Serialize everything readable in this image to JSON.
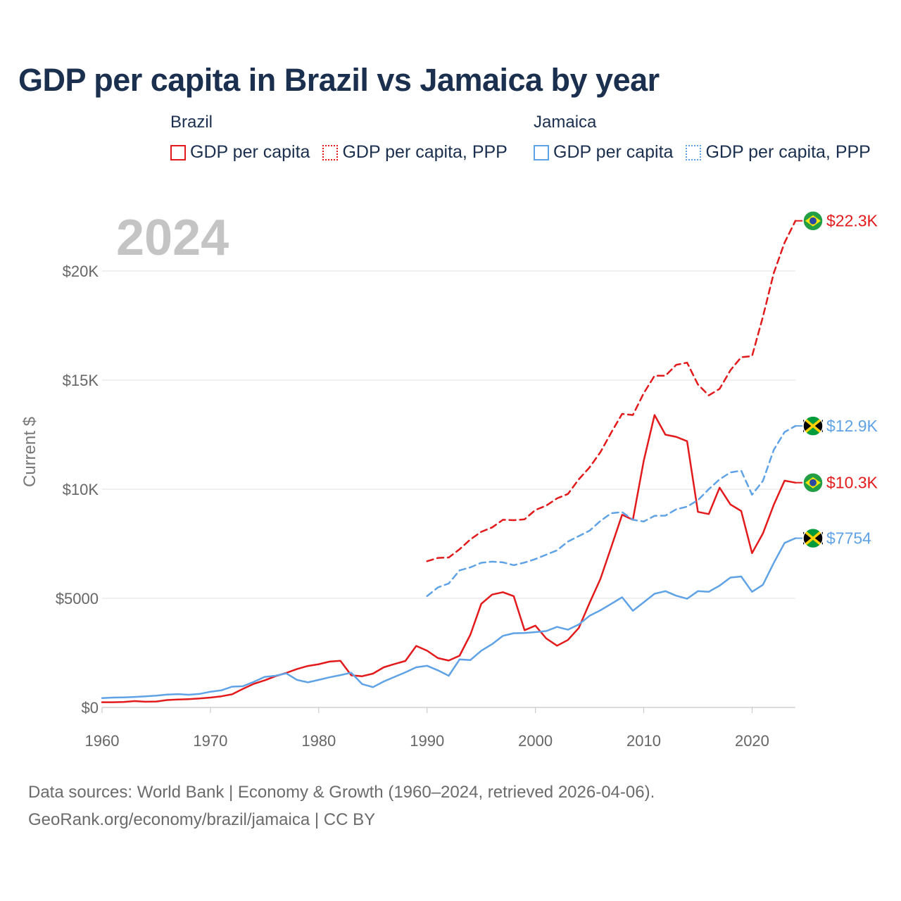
{
  "title": "GDP per capita in Brazil vs Jamaica by year",
  "legend": {
    "brazil": {
      "heading": "Brazil",
      "gdp": "GDP per capita",
      "ppp": "GDP per capita, PPP",
      "color": "#e31a1c"
    },
    "jamaica": {
      "heading": "Jamaica",
      "gdp": "GDP per capita",
      "ppp": "GDP per capita, PPP",
      "color": "#5fa3e6"
    }
  },
  "year_label": "2024",
  "footer": {
    "line1": "Data sources: World Bank | Economy & Growth (1960–2024, retrieved 2026-04-06).",
    "line2": "GeoRank.org/economy/brazil/jamaica | CC BY"
  },
  "chart_data": {
    "type": "line",
    "title": "GDP per capita in Brazil vs Jamaica by year",
    "xlabel": "",
    "ylabel": "Current $",
    "xlim": [
      1960,
      2024
    ],
    "ylim": [
      0,
      20000
    ],
    "x_ticks": [
      1960,
      1970,
      1980,
      1990,
      2000,
      2010,
      2020
    ],
    "x_tick_labels": [
      "1960",
      "1970",
      "1980",
      "1990",
      "2000",
      "2010",
      "2020"
    ],
    "y_ticks": [
      0,
      5000,
      10000,
      15000,
      20000
    ],
    "y_tick_labels": [
      "$0",
      "$5000",
      "$10K",
      "$15K",
      "$20K"
    ],
    "grid": true,
    "series": [
      {
        "name": "Brazil GDP per capita",
        "style": "solid",
        "color": "#e31a1c",
        "end_label": "$10.3K",
        "flag": "brazil",
        "x": [
          1960,
          1961,
          1962,
          1963,
          1964,
          1965,
          1966,
          1967,
          1968,
          1969,
          1970,
          1971,
          1972,
          1973,
          1974,
          1975,
          1976,
          1977,
          1978,
          1979,
          1980,
          1981,
          1982,
          1983,
          1984,
          1985,
          1986,
          1987,
          1988,
          1989,
          1990,
          1991,
          1992,
          1993,
          1994,
          1995,
          1996,
          1997,
          1998,
          1999,
          2000,
          2001,
          2002,
          2003,
          2004,
          2005,
          2006,
          2007,
          2008,
          2009,
          2010,
          2011,
          2012,
          2013,
          2014,
          2015,
          2016,
          2017,
          2018,
          2019,
          2020,
          2021,
          2022,
          2023,
          2024
        ],
        "values": [
          240,
          240,
          250,
          290,
          260,
          270,
          340,
          360,
          380,
          410,
          450,
          510,
          600,
          850,
          1080,
          1240,
          1430,
          1580,
          1760,
          1900,
          1980,
          2100,
          2140,
          1470,
          1430,
          1550,
          1840,
          1990,
          2130,
          2820,
          2600,
          2260,
          2150,
          2370,
          3340,
          4750,
          5170,
          5280,
          5100,
          3540,
          3750,
          3160,
          2830,
          3090,
          3640,
          4790,
          5890,
          7350,
          8830,
          8600,
          11300,
          13400,
          12500,
          12400,
          12200,
          8960,
          8860,
          10070,
          9300,
          9000,
          7070,
          7970,
          9280,
          10390,
          10300
        ]
      },
      {
        "name": "Brazil GDP per capita, PPP",
        "style": "dashed",
        "color": "#e31a1c",
        "end_label": "$22.3K",
        "flag": "brazil",
        "x": [
          1990,
          1991,
          1992,
          1993,
          1994,
          1995,
          1996,
          1997,
          1998,
          1999,
          2000,
          2001,
          2002,
          2003,
          2004,
          2005,
          2006,
          2007,
          2008,
          2009,
          2010,
          2011,
          2012,
          2013,
          2014,
          2015,
          2016,
          2017,
          2018,
          2019,
          2020,
          2021,
          2022,
          2023,
          2024
        ],
        "values": [
          6700,
          6850,
          6870,
          7250,
          7700,
          8050,
          8250,
          8600,
          8580,
          8620,
          9050,
          9250,
          9580,
          9780,
          10450,
          11000,
          11700,
          12600,
          13450,
          13400,
          14400,
          15200,
          15200,
          15700,
          15800,
          14800,
          14300,
          14600,
          15450,
          16050,
          16100,
          17900,
          19900,
          21300,
          22300
        ]
      },
      {
        "name": "Jamaica GDP per capita",
        "style": "solid",
        "color": "#5fa3e6",
        "end_label": "$7754",
        "flag": "jamaica",
        "x": [
          1960,
          1961,
          1962,
          1963,
          1964,
          1965,
          1966,
          1967,
          1968,
          1969,
          1970,
          1971,
          1972,
          1973,
          1974,
          1975,
          1976,
          1977,
          1978,
          1979,
          1980,
          1981,
          1982,
          1983,
          1984,
          1985,
          1986,
          1987,
          1988,
          1989,
          1990,
          1991,
          1992,
          1993,
          1994,
          1995,
          1996,
          1997,
          1998,
          1999,
          2000,
          2001,
          2002,
          2003,
          2004,
          2005,
          2006,
          2007,
          2008,
          2009,
          2010,
          2011,
          2012,
          2013,
          2014,
          2015,
          2016,
          2017,
          2018,
          2019,
          2020,
          2021,
          2022,
          2023,
          2024
        ],
        "values": [
          430,
          450,
          460,
          480,
          510,
          540,
          590,
          610,
          580,
          620,
          720,
          780,
          950,
          970,
          1170,
          1400,
          1450,
          1560,
          1260,
          1150,
          1260,
          1380,
          1480,
          1590,
          1070,
          930,
          1190,
          1400,
          1610,
          1840,
          1910,
          1700,
          1450,
          2200,
          2170,
          2600,
          2900,
          3280,
          3400,
          3410,
          3450,
          3500,
          3690,
          3560,
          3800,
          4200,
          4450,
          4750,
          5050,
          4430,
          4820,
          5210,
          5330,
          5120,
          4980,
          5330,
          5300,
          5580,
          5950,
          6000,
          5300,
          5620,
          6620,
          7540,
          7754
        ]
      },
      {
        "name": "Jamaica GDP per capita, PPP",
        "style": "dashed",
        "color": "#5fa3e6",
        "end_label": "$12.9K",
        "flag": "jamaica",
        "x": [
          1990,
          1991,
          1992,
          1993,
          1994,
          1995,
          1996,
          1997,
          1998,
          1999,
          2000,
          2001,
          2002,
          2003,
          2004,
          2005,
          2006,
          2007,
          2008,
          2009,
          2010,
          2011,
          2012,
          2013,
          2014,
          2015,
          2016,
          2017,
          2018,
          2019,
          2020,
          2021,
          2022,
          2023,
          2024
        ],
        "values": [
          5100,
          5500,
          5680,
          6280,
          6420,
          6630,
          6680,
          6650,
          6520,
          6640,
          6800,
          7000,
          7200,
          7600,
          7850,
          8100,
          8550,
          8900,
          8950,
          8600,
          8520,
          8780,
          8790,
          9080,
          9200,
          9500,
          10000,
          10450,
          10770,
          10850,
          9750,
          10380,
          11800,
          12620,
          12900
        ]
      }
    ]
  }
}
